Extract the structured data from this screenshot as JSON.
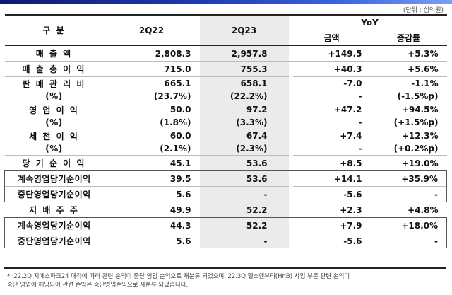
{
  "unit": "(단위 : 십억원)",
  "header": {
    "category": "구 분",
    "q22": "2Q22",
    "q23": "2Q23",
    "yoy": "YoY",
    "amount": "금액",
    "rate": "증감률"
  },
  "rows": {
    "sales": {
      "label": "매 출 액",
      "q22": "2,808.3",
      "q23": "2,957.8",
      "amt": "+149.5",
      "rate": "+5.3%"
    },
    "gross": {
      "label": "매 출 총 이 익",
      "q22": "715.0",
      "q23": "755.3",
      "amt": "+40.3",
      "rate": "+5.6%"
    },
    "sga": {
      "label": "판 매 관 리 비",
      "q22": "665.1",
      "q23": "658.1",
      "amt": "-7.0",
      "rate": "-1.1%"
    },
    "sga_pct": {
      "label": "(%)",
      "q22": "(23.7%)",
      "q23": "(22.2%)",
      "amt": "-",
      "rate": "(-1.5%p)"
    },
    "op": {
      "label": "영 업 이 익",
      "q22": "50.0",
      "q23": "97.2",
      "amt": "+47.2",
      "rate": "+94.5%"
    },
    "op_pct": {
      "label": "(%)",
      "q22": "(1.8%)",
      "q23": "(3.3%)",
      "amt": "-",
      "rate": "(+1.5%p)"
    },
    "pretax": {
      "label": "세 전 이 익",
      "q22": "60.0",
      "q23": "67.4",
      "amt": "+7.4",
      "rate": "+12.3%"
    },
    "pretax_pct": {
      "label": "(%)",
      "q22": "(2.1%)",
      "q23": "(2.3%)",
      "amt": "-",
      "rate": "(+0.2%p)"
    },
    "net": {
      "label": "당 기 순 이 익",
      "q22": "45.1",
      "q23": "53.6",
      "amt": "+8.5",
      "rate": "+19.0%"
    },
    "cont": {
      "label": "계속영업당기순이익",
      "q22": "39.5",
      "q23": "53.6",
      "amt": "+14.1",
      "rate": "+35.9%"
    },
    "disc": {
      "label": "중단영업당기순이익",
      "q22": "5.6",
      "q23": "-",
      "amt": "-5.6",
      "rate": "-"
    },
    "parent": {
      "label": "지 배 주 주",
      "q22": "49.9",
      "q23": "52.2",
      "amt": "+2.3",
      "rate": "+4.8%"
    },
    "p_cont": {
      "label": "계속영업당기순이익",
      "q22": "44.3",
      "q23": "52.2",
      "amt": "+7.9",
      "rate": "+18.0%"
    },
    "p_disc": {
      "label": "중단영업당기순이익",
      "q22": "5.6",
      "q23": "-",
      "amt": "-5.6",
      "rate": "-"
    }
  },
  "footnote": {
    "line1": "* '22.2Q 지에스파크24 매각에 따라 관련 손익이 중단 영업 손익으로 재분류 되었으며,'22.3Q 헬스앤뷰티(HnB) 사업 부문 관련 손익이",
    "line2": "  중단 영업에 해당되어 관련 손익은 중단영업손익으로 재분류 되었습니다."
  }
}
